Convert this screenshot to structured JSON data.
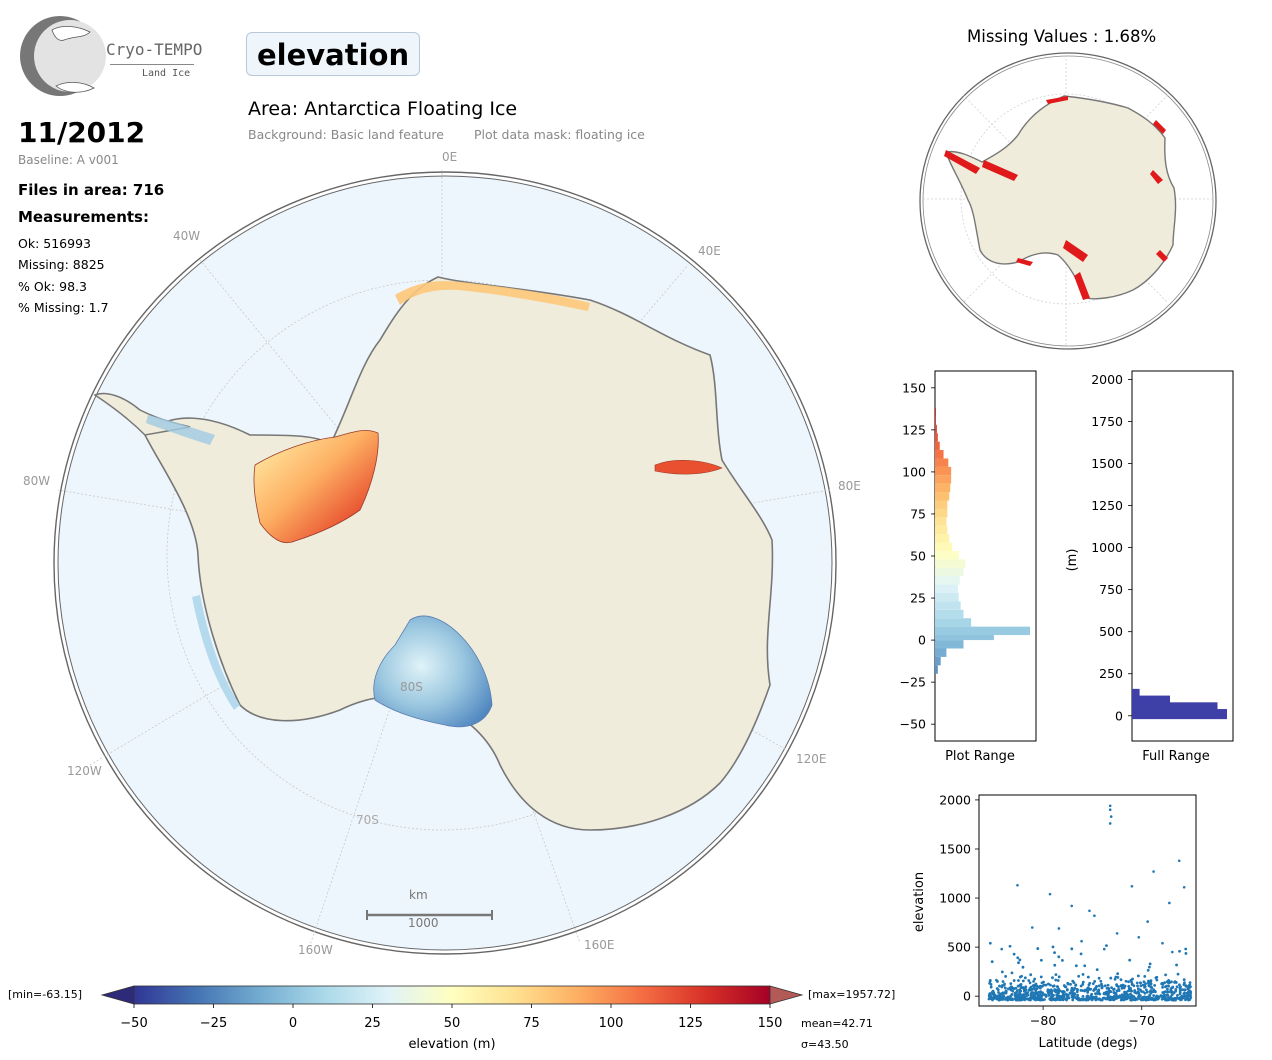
{
  "logo": {
    "name": "Cryo-TEMPO",
    "sub": "Land Ice"
  },
  "title": "elevation",
  "date": "11/2012",
  "baseline": "Baseline: A v001",
  "files": "Files in area: 716",
  "measurements_heading": "Measurements:",
  "stats": [
    "Ok: 516993",
    "Missing: 8825",
    "% Ok: 98.3",
    "% Missing: 1.7"
  ],
  "area": "Area: Antarctica Floating Ice",
  "background_text": "Background: Basic land feature",
  "mask_text": "Plot data mask: floating ice",
  "map": {
    "lon_labels": [
      "0E",
      "40E",
      "80E",
      "120E",
      "160E",
      "40W",
      "80W",
      "120W",
      "160W"
    ],
    "lat_labels": [
      "80S",
      "70S"
    ],
    "scalebar": {
      "unit": "km",
      "value": "1000"
    },
    "colors": {
      "ocean": "#eef6fd",
      "land": "#efecdb",
      "coast": "#777777"
    }
  },
  "missing_title": "Missing Values : 1.68%",
  "colorbar": {
    "min_label": "[min=-63.15]",
    "max_label": "[max=1957.72]",
    "ticks": [
      "−50",
      "−25",
      "0",
      "25",
      "50",
      "75",
      "100",
      "125",
      "150"
    ],
    "label": "elevation (m)",
    "mean": "mean=42.71",
    "sigma": "σ=43.50",
    "colormap": [
      "#313695",
      "#4575b4",
      "#74add1",
      "#abd9e9",
      "#e0f3f8",
      "#ffffbf",
      "#fee090",
      "#fdae61",
      "#f46d43",
      "#d73027",
      "#a50026"
    ]
  },
  "chart_data": [
    {
      "type": "bar",
      "orientation": "horizontal",
      "xlabel": "Plot Range",
      "ylim": [
        -60,
        160
      ],
      "yticks": [
        "−50",
        "−25",
        "0",
        "25",
        "50",
        "75",
        "100",
        "125",
        "150"
      ],
      "bins": [
        {
          "y": -20,
          "count": 3
        },
        {
          "y": -15,
          "count": 6
        },
        {
          "y": -10,
          "count": 12
        },
        {
          "y": -5,
          "count": 30
        },
        {
          "y": 0,
          "count": 62
        },
        {
          "y": 3,
          "count": 100
        },
        {
          "y": 8,
          "count": 38
        },
        {
          "y": 13,
          "count": 30
        },
        {
          "y": 18,
          "count": 27
        },
        {
          "y": 23,
          "count": 25
        },
        {
          "y": 28,
          "count": 24
        },
        {
          "y": 33,
          "count": 26
        },
        {
          "y": 38,
          "count": 30
        },
        {
          "y": 43,
          "count": 32
        },
        {
          "y": 48,
          "count": 25
        },
        {
          "y": 53,
          "count": 18
        },
        {
          "y": 58,
          "count": 15
        },
        {
          "y": 63,
          "count": 13
        },
        {
          "y": 68,
          "count": 12
        },
        {
          "y": 73,
          "count": 13
        },
        {
          "y": 78,
          "count": 13
        },
        {
          "y": 83,
          "count": 15
        },
        {
          "y": 88,
          "count": 16
        },
        {
          "y": 93,
          "count": 17
        },
        {
          "y": 98,
          "count": 17
        },
        {
          "y": 103,
          "count": 14
        },
        {
          "y": 108,
          "count": 9
        },
        {
          "y": 113,
          "count": 5
        },
        {
          "y": 118,
          "count": 3
        },
        {
          "y": 123,
          "count": 2
        },
        {
          "y": 128,
          "count": 1
        },
        {
          "y": 133,
          "count": 1
        }
      ]
    },
    {
      "type": "bar",
      "orientation": "horizontal",
      "xlabel": "Full Range",
      "ylabel": "(m)",
      "ylim": [
        -150,
        2050
      ],
      "yticks": [
        "0",
        "250",
        "500",
        "750",
        "1000",
        "1250",
        "1500",
        "1750",
        "2000"
      ],
      "bins": [
        {
          "y": 0,
          "count": 100
        },
        {
          "y": 40,
          "count": 90
        },
        {
          "y": 80,
          "count": 40
        },
        {
          "y": 120,
          "count": 8
        }
      ],
      "color": "#3f3fa8"
    },
    {
      "type": "scatter",
      "xlabel": "Latitude (degs)",
      "ylabel": "elevation",
      "xlim": [
        -86.5,
        -64.5
      ],
      "ylim": [
        -100,
        2050
      ],
      "xticks": [
        "−80",
        "−70"
      ],
      "yticks": [
        "0",
        "500",
        "1000",
        "1500",
        "2000"
      ],
      "color": "#1f77b4",
      "outliers": [
        [
          -73.2,
          1940
        ],
        [
          -73.2,
          1900
        ],
        [
          -73.1,
          1830
        ],
        [
          -73.2,
          1760
        ],
        [
          -66.2,
          1380
        ],
        [
          -68.8,
          1270
        ],
        [
          -65.7,
          1110
        ],
        [
          -71.0,
          1120
        ],
        [
          -82.6,
          1130
        ],
        [
          -79.3,
          1040
        ],
        [
          -67.2,
          950
        ],
        [
          -77.1,
          920
        ],
        [
          -75.3,
          870
        ],
        [
          -74.8,
          820
        ],
        [
          -69.4,
          760
        ],
        [
          -81.1,
          700
        ],
        [
          -78.4,
          690
        ],
        [
          -72.5,
          640
        ],
        [
          -76.1,
          560
        ],
        [
          -70.3,
          600
        ],
        [
          -67.9,
          540
        ],
        [
          -84.2,
          480
        ],
        [
          -66.9,
          450
        ],
        [
          -73.8,
          480
        ]
      ]
    }
  ]
}
